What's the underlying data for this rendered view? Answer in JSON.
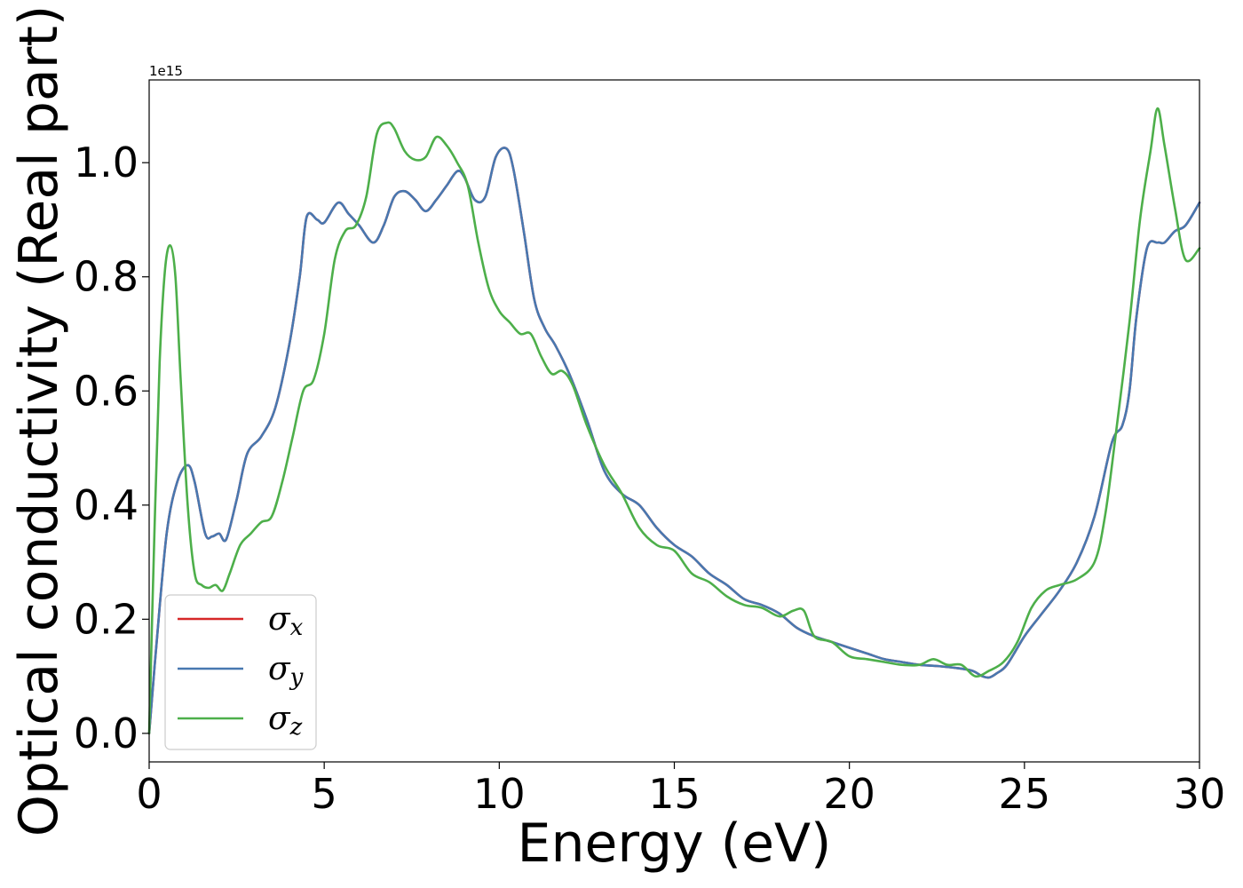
{
  "chart_data": {
    "type": "line",
    "title": "",
    "xlabel": "Energy (eV)",
    "ylabel": "Optical conductivity (Real part)",
    "y_offset_label": "1e15",
    "xlim": [
      0,
      30
    ],
    "ylim": [
      -0.05,
      1.145
    ],
    "x_ticks": [
      0,
      5,
      10,
      15,
      20,
      25,
      30
    ],
    "x_tick_labels": [
      "0",
      "5",
      "10",
      "15",
      "20",
      "25",
      "30"
    ],
    "y_ticks": [
      0.0,
      0.2,
      0.4,
      0.6,
      0.8,
      1.0
    ],
    "y_tick_labels": [
      "0.0",
      "0.2",
      "0.4",
      "0.6",
      "0.8",
      "1.0"
    ],
    "grid": false,
    "legend_position": "lower-left",
    "series": [
      {
        "name": "σx",
        "legend_base": "σ",
        "legend_sub": "x",
        "color": "#d62728",
        "x": [
          0,
          0.2,
          0.5,
          0.8,
          1.1,
          1.3,
          1.6,
          1.8,
          2.0,
          2.2,
          2.5,
          2.8,
          3.2,
          3.6,
          4.0,
          4.3,
          4.5,
          4.8,
          5.0,
          5.4,
          5.7,
          6.0,
          6.4,
          6.7,
          7.0,
          7.3,
          7.6,
          7.9,
          8.2,
          8.5,
          8.8,
          9.0,
          9.3,
          9.6,
          9.9,
          10.2,
          10.4,
          10.7,
          11.0,
          11.3,
          11.6,
          12.0,
          12.5,
          13.0,
          13.5,
          14.0,
          14.5,
          15.0,
          15.5,
          16.0,
          16.5,
          17.0,
          17.5,
          18.0,
          18.5,
          19.0,
          19.5,
          20.0,
          20.5,
          21.0,
          21.5,
          22.0,
          22.5,
          23.0,
          23.5,
          23.8,
          24.0,
          24.2,
          24.5,
          25.0,
          25.5,
          26.0,
          26.5,
          27.0,
          27.5,
          27.8,
          28.0,
          28.2,
          28.5,
          28.8,
          29.0,
          29.3,
          29.6,
          30.0
        ],
        "values": [
          0.0,
          0.15,
          0.35,
          0.44,
          0.47,
          0.44,
          0.35,
          0.345,
          0.35,
          0.34,
          0.41,
          0.49,
          0.52,
          0.57,
          0.68,
          0.8,
          0.905,
          0.9,
          0.895,
          0.93,
          0.91,
          0.89,
          0.86,
          0.89,
          0.94,
          0.95,
          0.935,
          0.915,
          0.935,
          0.96,
          0.985,
          0.975,
          0.935,
          0.94,
          1.01,
          1.025,
          0.99,
          0.88,
          0.76,
          0.71,
          0.68,
          0.63,
          0.55,
          0.46,
          0.42,
          0.4,
          0.36,
          0.33,
          0.31,
          0.28,
          0.26,
          0.235,
          0.225,
          0.21,
          0.185,
          0.17,
          0.16,
          0.15,
          0.14,
          0.13,
          0.125,
          0.12,
          0.118,
          0.115,
          0.11,
          0.1,
          0.098,
          0.105,
          0.12,
          0.17,
          0.21,
          0.25,
          0.3,
          0.38,
          0.51,
          0.54,
          0.6,
          0.73,
          0.85,
          0.86,
          0.86,
          0.88,
          0.89,
          0.93
        ]
      },
      {
        "name": "σy",
        "legend_base": "σ",
        "legend_sub": "y",
        "color": "#4878b0",
        "x": [
          0,
          0.2,
          0.5,
          0.8,
          1.1,
          1.3,
          1.6,
          1.8,
          2.0,
          2.2,
          2.5,
          2.8,
          3.2,
          3.6,
          4.0,
          4.3,
          4.5,
          4.8,
          5.0,
          5.4,
          5.7,
          6.0,
          6.4,
          6.7,
          7.0,
          7.3,
          7.6,
          7.9,
          8.2,
          8.5,
          8.8,
          9.0,
          9.3,
          9.6,
          9.9,
          10.2,
          10.4,
          10.7,
          11.0,
          11.3,
          11.6,
          12.0,
          12.5,
          13.0,
          13.5,
          14.0,
          14.5,
          15.0,
          15.5,
          16.0,
          16.5,
          17.0,
          17.5,
          18.0,
          18.5,
          19.0,
          19.5,
          20.0,
          20.5,
          21.0,
          21.5,
          22.0,
          22.5,
          23.0,
          23.5,
          23.8,
          24.0,
          24.2,
          24.5,
          25.0,
          25.5,
          26.0,
          26.5,
          27.0,
          27.5,
          27.8,
          28.0,
          28.2,
          28.5,
          28.8,
          29.0,
          29.3,
          29.6,
          30.0
        ],
        "values": [
          0.0,
          0.15,
          0.35,
          0.44,
          0.47,
          0.44,
          0.35,
          0.345,
          0.35,
          0.34,
          0.41,
          0.49,
          0.52,
          0.57,
          0.68,
          0.8,
          0.905,
          0.9,
          0.895,
          0.93,
          0.91,
          0.89,
          0.86,
          0.89,
          0.94,
          0.95,
          0.935,
          0.915,
          0.935,
          0.96,
          0.985,
          0.975,
          0.935,
          0.94,
          1.01,
          1.025,
          0.99,
          0.88,
          0.76,
          0.71,
          0.68,
          0.63,
          0.55,
          0.46,
          0.42,
          0.4,
          0.36,
          0.33,
          0.31,
          0.28,
          0.26,
          0.235,
          0.225,
          0.21,
          0.185,
          0.17,
          0.16,
          0.15,
          0.14,
          0.13,
          0.125,
          0.12,
          0.118,
          0.115,
          0.11,
          0.1,
          0.098,
          0.105,
          0.12,
          0.17,
          0.21,
          0.25,
          0.3,
          0.38,
          0.51,
          0.54,
          0.6,
          0.73,
          0.85,
          0.86,
          0.86,
          0.88,
          0.89,
          0.93
        ]
      },
      {
        "name": "σz",
        "legend_base": "σ",
        "legend_sub": "z",
        "color": "#4daf4a",
        "x": [
          0,
          0.15,
          0.3,
          0.45,
          0.6,
          0.75,
          0.9,
          1.1,
          1.3,
          1.5,
          1.7,
          1.9,
          2.1,
          2.3,
          2.6,
          2.9,
          3.2,
          3.5,
          3.8,
          4.1,
          4.4,
          4.7,
          5.0,
          5.3,
          5.6,
          5.9,
          6.2,
          6.5,
          6.8,
          7.0,
          7.3,
          7.6,
          7.9,
          8.2,
          8.5,
          8.8,
          9.1,
          9.4,
          9.7,
          10.0,
          10.3,
          10.6,
          10.9,
          11.2,
          11.5,
          11.8,
          12.1,
          12.5,
          13.0,
          13.5,
          14.0,
          14.5,
          15.0,
          15.5,
          16.0,
          16.5,
          17.0,
          17.5,
          18.0,
          18.4,
          18.7,
          19.0,
          19.5,
          20.0,
          20.5,
          21.0,
          21.5,
          22.0,
          22.4,
          22.8,
          23.2,
          23.6,
          24.0,
          24.4,
          24.8,
          25.2,
          25.6,
          26.0,
          26.5,
          27.0,
          27.3,
          27.6,
          28.0,
          28.3,
          28.6,
          28.8,
          29.0,
          29.3,
          29.6,
          30.0
        ],
        "values": [
          0.0,
          0.35,
          0.65,
          0.81,
          0.855,
          0.8,
          0.62,
          0.4,
          0.28,
          0.26,
          0.255,
          0.26,
          0.25,
          0.28,
          0.33,
          0.35,
          0.37,
          0.38,
          0.44,
          0.52,
          0.6,
          0.62,
          0.7,
          0.83,
          0.88,
          0.89,
          0.94,
          1.05,
          1.07,
          1.06,
          1.02,
          1.005,
          1.01,
          1.045,
          1.03,
          1.0,
          0.96,
          0.86,
          0.78,
          0.74,
          0.72,
          0.7,
          0.7,
          0.66,
          0.63,
          0.635,
          0.61,
          0.54,
          0.47,
          0.42,
          0.36,
          0.33,
          0.32,
          0.28,
          0.265,
          0.24,
          0.225,
          0.22,
          0.205,
          0.215,
          0.215,
          0.17,
          0.16,
          0.135,
          0.13,
          0.125,
          0.12,
          0.12,
          0.13,
          0.12,
          0.12,
          0.1,
          0.11,
          0.125,
          0.16,
          0.22,
          0.25,
          0.26,
          0.27,
          0.3,
          0.38,
          0.52,
          0.72,
          0.9,
          1.02,
          1.095,
          1.03,
          0.92,
          0.83,
          0.85
        ]
      }
    ]
  }
}
